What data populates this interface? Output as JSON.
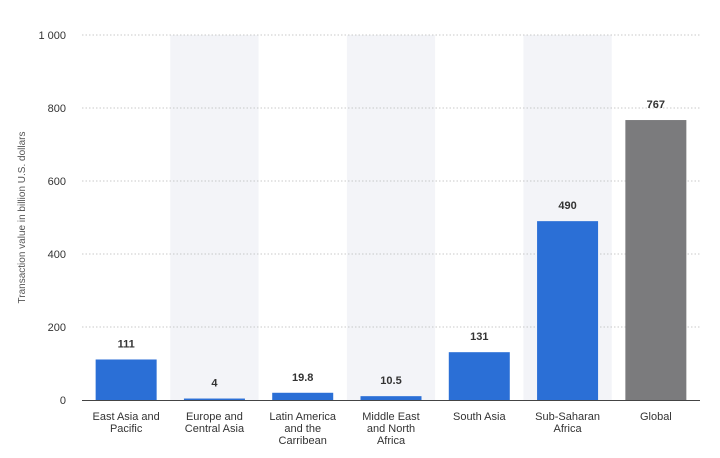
{
  "chart_data": {
    "type": "bar",
    "categories": [
      [
        "East Asia and",
        "Pacific"
      ],
      [
        "Europe and",
        "Central Asia"
      ],
      [
        "Latin America",
        "and the",
        "Carribean"
      ],
      [
        "Middle East",
        "and North",
        "Africa"
      ],
      [
        "South Asia"
      ],
      [
        "Sub-Saharan",
        "Africa"
      ],
      [
        "Global"
      ]
    ],
    "values": [
      111,
      4,
      19.8,
      10.5,
      131,
      490,
      767
    ],
    "value_labels": [
      "111",
      "4",
      "19.8",
      "10.5",
      "131",
      "490",
      "767"
    ],
    "ylabel": "Transaction value in billion U.S. dollars",
    "ylim": [
      0,
      1000
    ],
    "yticks": [
      0,
      200,
      400,
      600,
      800,
      1000
    ],
    "ytick_labels": [
      "0",
      "200",
      "400",
      "600",
      "800",
      "1 000"
    ],
    "grid": true,
    "colors": {
      "bar": "#2b6fd6",
      "highlight_bar": "#7b7b7d",
      "band": "#f3f4f8",
      "grid": "#b8b8b8",
      "axis": "#444444"
    },
    "highlight_index": 6
  }
}
